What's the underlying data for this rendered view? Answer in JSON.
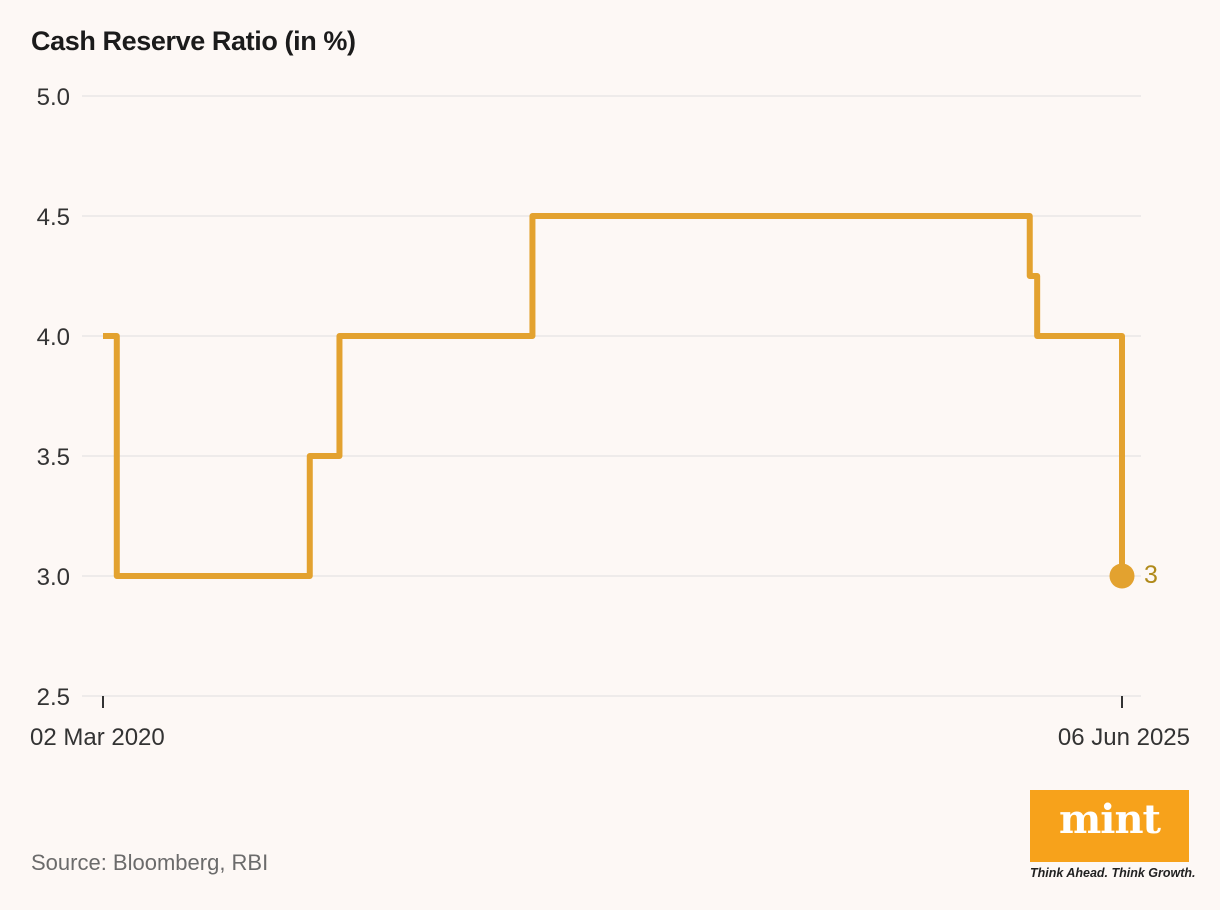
{
  "title": "Cash Reserve Ratio (in %)",
  "source": "Source: Bloomberg, RBI",
  "logo": {
    "word": "mint",
    "tagline": "Think Ahead. Think Growth."
  },
  "colors": {
    "background": "#fdf8f5",
    "line": "#e3a22f",
    "end_label": "#b08a1a",
    "grid": "#dedede",
    "logo_bg": "#f7a21b"
  },
  "chart_data": {
    "type": "line",
    "interpolation": "step-after",
    "title": "Cash Reserve Ratio (in %)",
    "xlabel": "",
    "ylabel": "",
    "ylim": [
      2.5,
      5.0
    ],
    "yticks": [
      "5.0",
      "4.5",
      "4.0",
      "3.5",
      "3.0",
      "2.5"
    ],
    "xlim": [
      "2020-03-02",
      "2025-06-06"
    ],
    "xticks": [
      {
        "date": "2020-03-02",
        "label": "02 Mar 2020"
      },
      {
        "date": "2025-06-06",
        "label": "06 Jun 2025"
      }
    ],
    "grid": true,
    "series": [
      {
        "points": [
          {
            "x": "2020-03-02",
            "y": 4.0
          },
          {
            "x": "2020-03-28",
            "y": 3.0
          },
          {
            "x": "2021-03-27",
            "y": 3.5
          },
          {
            "x": "2021-05-22",
            "y": 4.0
          },
          {
            "x": "2022-05-21",
            "y": 4.5
          },
          {
            "x": "2024-12-14",
            "y": 4.25
          },
          {
            "x": "2024-12-28",
            "y": 4.0
          },
          {
            "x": "2025-06-06",
            "y": 3.0
          }
        ]
      }
    ],
    "end_label": "3"
  }
}
